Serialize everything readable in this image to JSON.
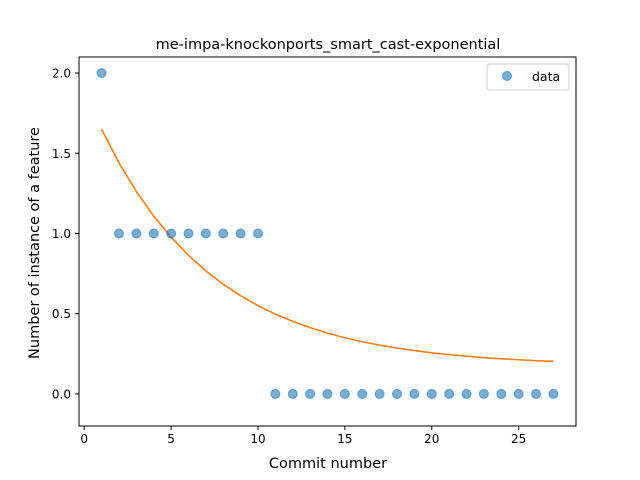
{
  "chart_data": {
    "type": "scatter",
    "title": "me-impa-knockonports_smart_cast-exponential",
    "xlabel": "Commit number",
    "ylabel": "Number of instance of a feature",
    "xlim": [
      -0.3,
      28.3
    ],
    "ylim": [
      -0.2,
      2.1
    ],
    "xticks": [
      0,
      5,
      10,
      15,
      20,
      25
    ],
    "xtick_labels": [
      "0",
      "5",
      "10",
      "15",
      "20",
      "25"
    ],
    "yticks": [
      0.0,
      0.5,
      1.0,
      1.5,
      2.0
    ],
    "ytick_labels": [
      "0.0",
      "0.5",
      "1.0",
      "1.5",
      "2.0"
    ],
    "grid": false,
    "legend_position": "top-right",
    "series": [
      {
        "name": "data",
        "kind": "scatter",
        "color": "#1f77b4",
        "x": [
          1,
          2,
          3,
          4,
          5,
          6,
          7,
          8,
          9,
          10,
          11,
          12,
          13,
          14,
          15,
          16,
          17,
          18,
          19,
          20,
          21,
          22,
          23,
          24,
          25,
          26,
          27
        ],
        "y": [
          2,
          1,
          1,
          1,
          1,
          1,
          1,
          1,
          1,
          1,
          0,
          0,
          0,
          0,
          0,
          0,
          0,
          0,
          0,
          0,
          0,
          0,
          0,
          0,
          0,
          0,
          0
        ]
      },
      {
        "kind": "line",
        "color": "#ff7f0e",
        "x": [
          1,
          2,
          3,
          4,
          5,
          6,
          7,
          8,
          9,
          10,
          11,
          12,
          13,
          14,
          15,
          16,
          17,
          18,
          19,
          20,
          21,
          22,
          23,
          24,
          25,
          26,
          27
        ],
        "y": [
          1.65,
          1.441,
          1.262,
          1.108,
          0.977,
          0.864,
          0.767,
          0.683,
          0.612,
          0.55,
          0.497,
          0.452,
          0.413,
          0.379,
          0.35,
          0.325,
          0.304,
          0.286,
          0.27,
          0.256,
          0.245,
          0.235,
          0.226,
          0.219,
          0.213,
          0.207,
          0.203
        ]
      }
    ]
  }
}
